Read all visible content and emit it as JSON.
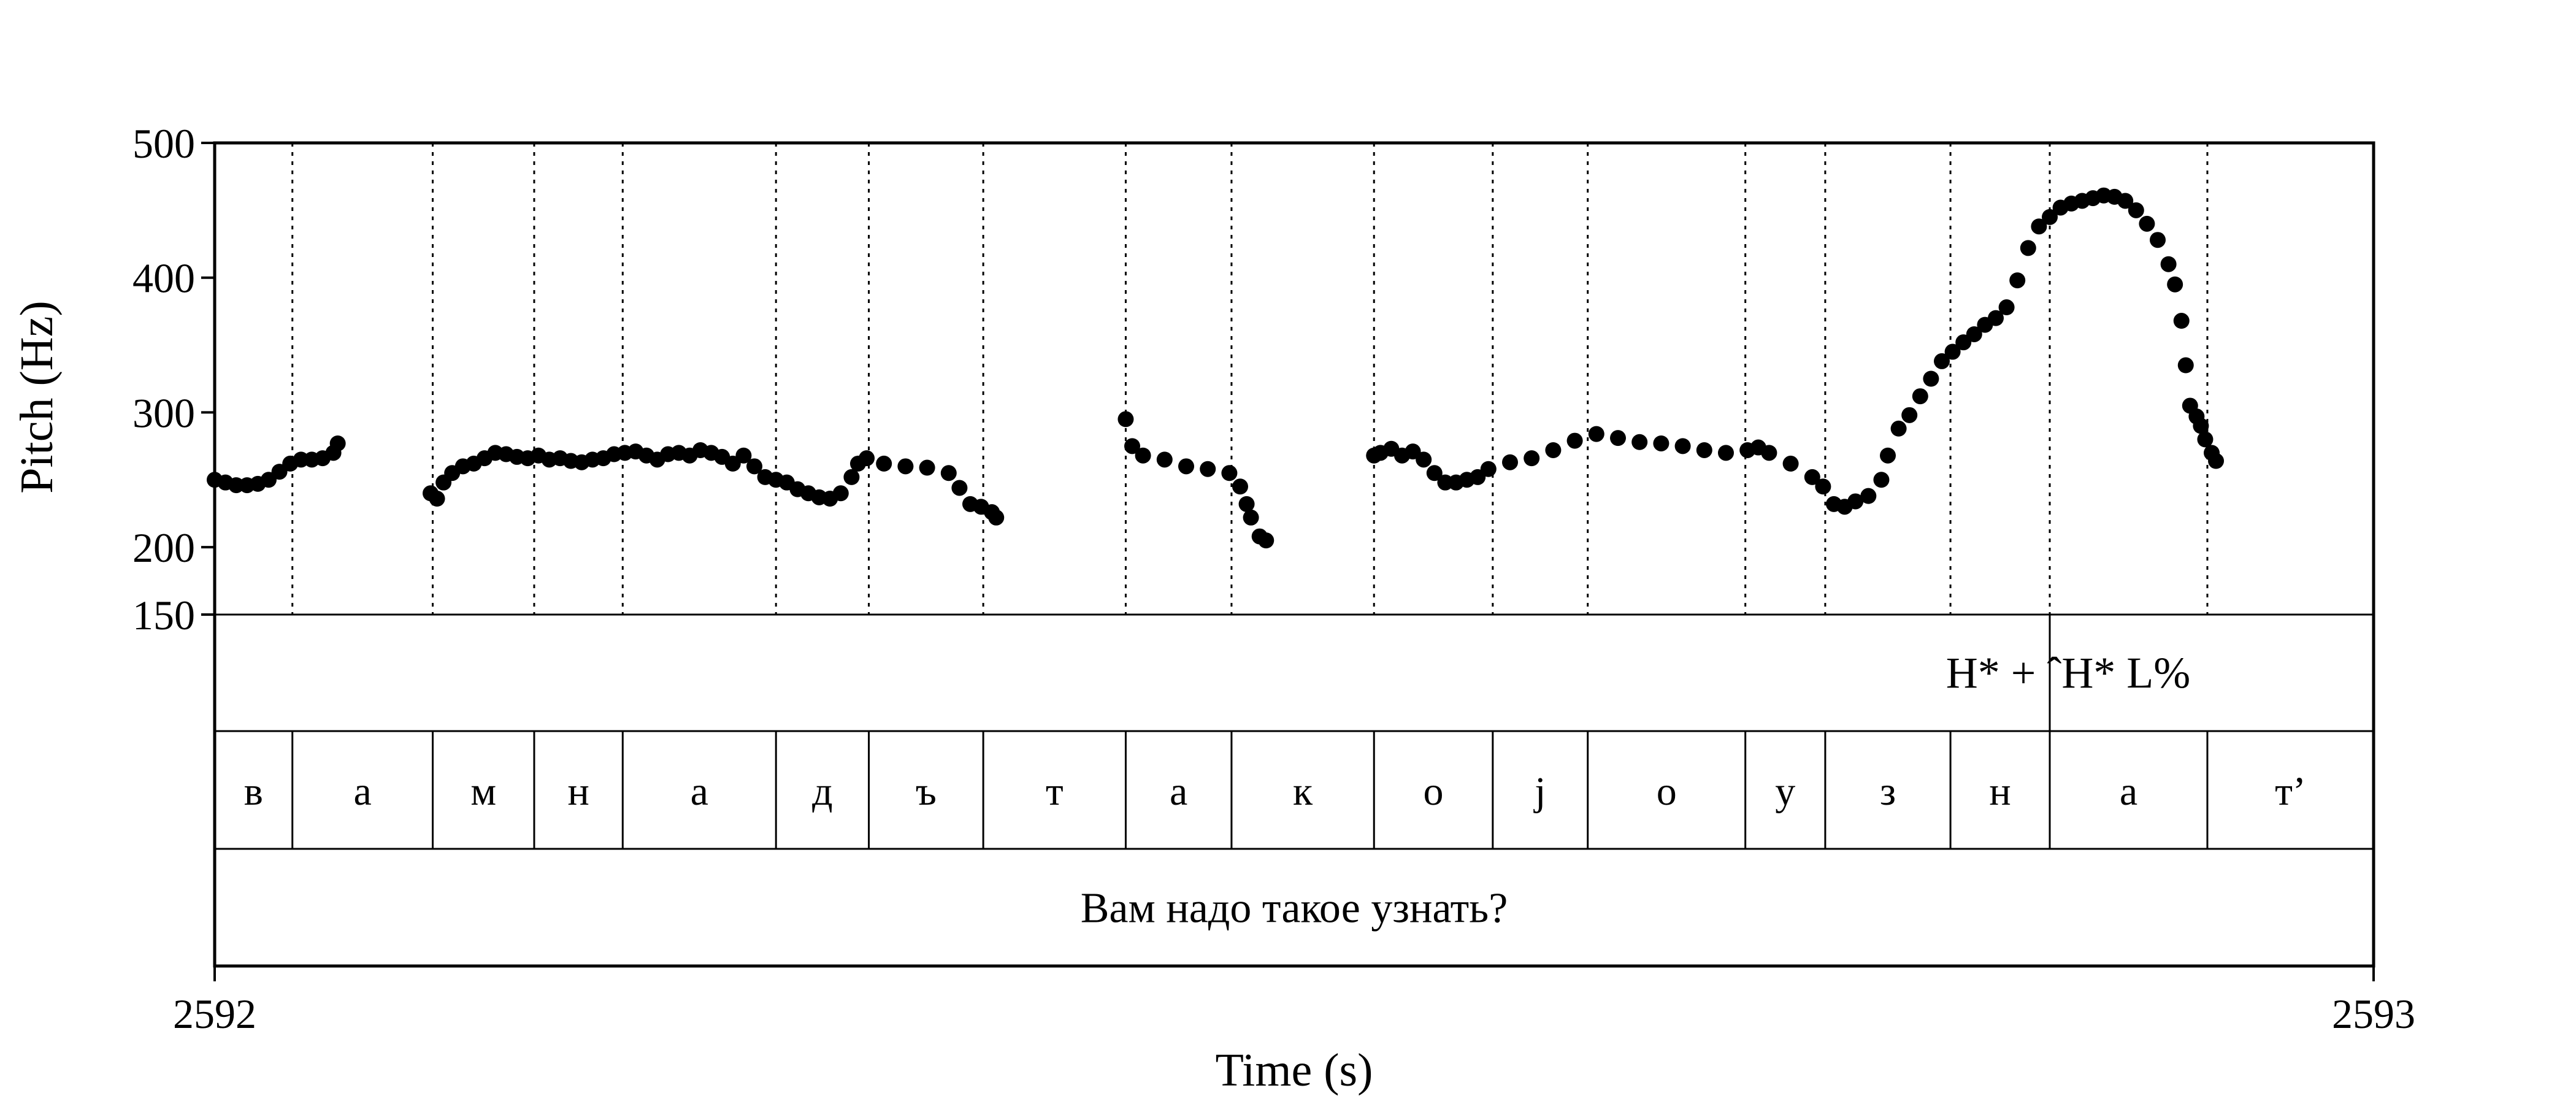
{
  "chart_data": {
    "type": "scatter",
    "xlabel": "Time (s)",
    "ylabel": "Pitch (Hz)",
    "xlim": [
      2592,
      2593
    ],
    "ylim": [
      150,
      500
    ],
    "x_ticks": [
      {
        "value": 2592,
        "label": "2592"
      },
      {
        "value": 2593,
        "label": "2593"
      }
    ],
    "y_ticks": [
      {
        "value": 500,
        "label": "500"
      },
      {
        "value": 400,
        "label": "400"
      },
      {
        "value": 300,
        "label": "300"
      },
      {
        "value": 200,
        "label": "200"
      },
      {
        "value": 150,
        "label": "150"
      }
    ],
    "grid": false,
    "boundaries": [
      2592.036,
      2592.101,
      2592.148,
      2592.189,
      2592.26,
      2592.303,
      2592.356,
      2592.422,
      2592.471,
      2592.537,
      2592.592,
      2592.636,
      2592.709,
      2592.746,
      2592.804,
      2592.85,
      2592.923
    ],
    "tones": [
      {
        "t": 2592.85,
        "label": "H* + ˆH*  L%"
      }
    ],
    "segments": [
      {
        "start": 2592.0,
        "end": 2592.036,
        "label": "в"
      },
      {
        "start": 2592.036,
        "end": 2592.101,
        "label": "а"
      },
      {
        "start": 2592.101,
        "end": 2592.148,
        "label": "м"
      },
      {
        "start": 2592.148,
        "end": 2592.189,
        "label": "н"
      },
      {
        "start": 2592.189,
        "end": 2592.26,
        "label": "а"
      },
      {
        "start": 2592.26,
        "end": 2592.303,
        "label": "д"
      },
      {
        "start": 2592.303,
        "end": 2592.356,
        "label": "ъ"
      },
      {
        "start": 2592.356,
        "end": 2592.422,
        "label": "т"
      },
      {
        "start": 2592.422,
        "end": 2592.471,
        "label": "а"
      },
      {
        "start": 2592.471,
        "end": 2592.537,
        "label": "к"
      },
      {
        "start": 2592.537,
        "end": 2592.592,
        "label": "о"
      },
      {
        "start": 2592.592,
        "end": 2592.636,
        "label": "j"
      },
      {
        "start": 2592.636,
        "end": 2592.709,
        "label": "о"
      },
      {
        "start": 2592.709,
        "end": 2592.746,
        "label": "у"
      },
      {
        "start": 2592.746,
        "end": 2592.804,
        "label": "з"
      },
      {
        "start": 2592.804,
        "end": 2592.85,
        "label": "н"
      },
      {
        "start": 2592.85,
        "end": 2592.923,
        "label": "а"
      },
      {
        "start": 2592.923,
        "end": 2593.0,
        "label": "т’"
      }
    ],
    "sentence": "Вам надо такое узнать?",
    "series": [
      {
        "points": [
          [
            2592.0,
            250
          ],
          [
            2592.005,
            248
          ],
          [
            2592.01,
            246
          ],
          [
            2592.015,
            246
          ],
          [
            2592.02,
            247
          ],
          [
            2592.025,
            250
          ],
          [
            2592.03,
            256
          ],
          [
            2592.035,
            262
          ],
          [
            2592.04,
            265
          ],
          [
            2592.045,
            265
          ],
          [
            2592.05,
            266
          ],
          [
            2592.055,
            270
          ],
          [
            2592.057,
            277
          ],
          [
            2592.1,
            240
          ],
          [
            2592.103,
            236
          ],
          [
            2592.106,
            248
          ],
          [
            2592.11,
            255
          ],
          [
            2592.115,
            260
          ],
          [
            2592.12,
            262
          ],
          [
            2592.125,
            266
          ],
          [
            2592.13,
            270
          ],
          [
            2592.135,
            269
          ],
          [
            2592.14,
            267
          ],
          [
            2592.145,
            266
          ],
          [
            2592.15,
            268
          ],
          [
            2592.155,
            265
          ],
          [
            2592.16,
            266
          ],
          [
            2592.165,
            264
          ],
          [
            2592.17,
            263
          ],
          [
            2592.175,
            265
          ],
          [
            2592.18,
            266
          ],
          [
            2592.185,
            269
          ],
          [
            2592.19,
            270
          ],
          [
            2592.195,
            271
          ],
          [
            2592.2,
            268
          ],
          [
            2592.205,
            265
          ],
          [
            2592.21,
            269
          ],
          [
            2592.215,
            270
          ],
          [
            2592.22,
            268
          ],
          [
            2592.225,
            272
          ],
          [
            2592.23,
            270
          ],
          [
            2592.235,
            267
          ],
          [
            2592.24,
            262
          ],
          [
            2592.245,
            268
          ],
          [
            2592.25,
            260
          ],
          [
            2592.255,
            252
          ],
          [
            2592.26,
            250
          ],
          [
            2592.265,
            248
          ],
          [
            2592.27,
            243
          ],
          [
            2592.275,
            240
          ],
          [
            2592.28,
            237
          ],
          [
            2592.285,
            236
          ],
          [
            2592.29,
            240
          ],
          [
            2592.295,
            252
          ],
          [
            2592.298,
            262
          ],
          [
            2592.302,
            266
          ],
          [
            2592.31,
            262
          ],
          [
            2592.32,
            260
          ],
          [
            2592.33,
            259
          ],
          [
            2592.34,
            255
          ],
          [
            2592.345,
            244
          ],
          [
            2592.35,
            232
          ],
          [
            2592.355,
            230
          ],
          [
            2592.36,
            226
          ],
          [
            2592.362,
            222
          ],
          [
            2592.422,
            295
          ],
          [
            2592.425,
            275
          ],
          [
            2592.43,
            268
          ],
          [
            2592.44,
            265
          ],
          [
            2592.45,
            260
          ],
          [
            2592.46,
            258
          ],
          [
            2592.47,
            255
          ],
          [
            2592.475,
            245
          ],
          [
            2592.478,
            232
          ],
          [
            2592.48,
            222
          ],
          [
            2592.484,
            208
          ],
          [
            2592.487,
            205
          ],
          [
            2592.537,
            268
          ],
          [
            2592.54,
            270
          ],
          [
            2592.545,
            273
          ],
          [
            2592.55,
            268
          ],
          [
            2592.555,
            271
          ],
          [
            2592.56,
            265
          ],
          [
            2592.565,
            255
          ],
          [
            2592.57,
            248
          ],
          [
            2592.575,
            248
          ],
          [
            2592.58,
            250
          ],
          [
            2592.585,
            252
          ],
          [
            2592.59,
            258
          ],
          [
            2592.6,
            263
          ],
          [
            2592.61,
            266
          ],
          [
            2592.62,
            272
          ],
          [
            2592.63,
            279
          ],
          [
            2592.64,
            284
          ],
          [
            2592.65,
            281
          ],
          [
            2592.66,
            278
          ],
          [
            2592.67,
            277
          ],
          [
            2592.68,
            275
          ],
          [
            2592.69,
            272
          ],
          [
            2592.7,
            270
          ],
          [
            2592.71,
            272
          ],
          [
            2592.715,
            274
          ],
          [
            2592.72,
            270
          ],
          [
            2592.73,
            262
          ],
          [
            2592.74,
            252
          ],
          [
            2592.745,
            245
          ],
          [
            2592.75,
            232
          ],
          [
            2592.755,
            230
          ],
          [
            2592.76,
            234
          ],
          [
            2592.766,
            238
          ],
          [
            2592.772,
            250
          ],
          [
            2592.775,
            268
          ],
          [
            2592.78,
            288
          ],
          [
            2592.785,
            298
          ],
          [
            2592.79,
            312
          ],
          [
            2592.795,
            325
          ],
          [
            2592.8,
            338
          ],
          [
            2592.805,
            345
          ],
          [
            2592.81,
            352
          ],
          [
            2592.815,
            358
          ],
          [
            2592.82,
            365
          ],
          [
            2592.825,
            370
          ],
          [
            2592.83,
            378
          ],
          [
            2592.835,
            398
          ],
          [
            2592.84,
            422
          ],
          [
            2592.845,
            438
          ],
          [
            2592.85,
            445
          ],
          [
            2592.855,
            452
          ],
          [
            2592.86,
            455
          ],
          [
            2592.865,
            457
          ],
          [
            2592.87,
            459
          ],
          [
            2592.875,
            461
          ],
          [
            2592.88,
            460
          ],
          [
            2592.885,
            457
          ],
          [
            2592.89,
            450
          ],
          [
            2592.895,
            440
          ],
          [
            2592.9,
            428
          ],
          [
            2592.905,
            410
          ],
          [
            2592.908,
            395
          ],
          [
            2592.911,
            368
          ],
          [
            2592.913,
            335
          ],
          [
            2592.915,
            305
          ],
          [
            2592.918,
            297
          ],
          [
            2592.92,
            290
          ],
          [
            2592.922,
            280
          ],
          [
            2592.925,
            270
          ],
          [
            2592.927,
            264
          ]
        ]
      }
    ]
  }
}
